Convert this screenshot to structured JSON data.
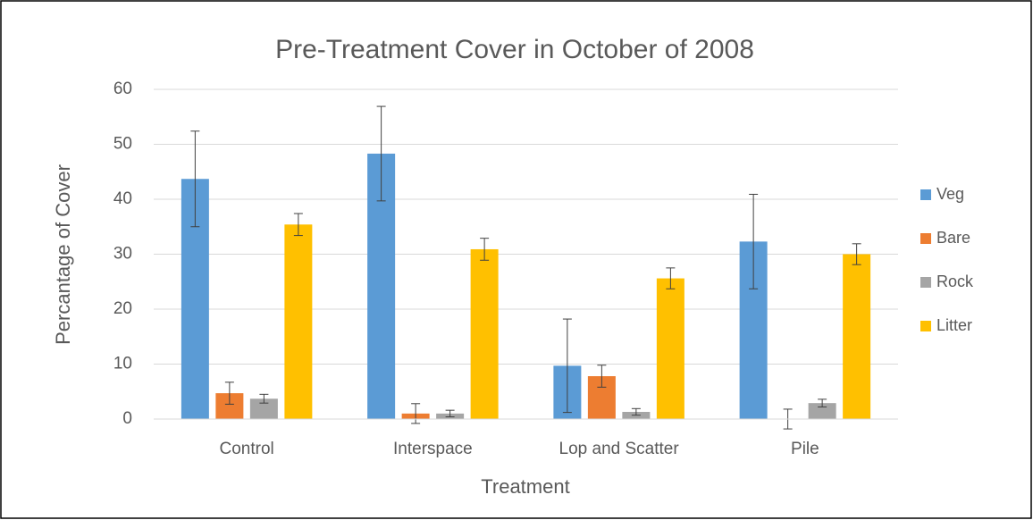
{
  "chart_data": {
    "type": "bar",
    "title": "Pre-Treatment Cover in October of 2008",
    "xlabel": "Treatment",
    "ylabel": "Percantage  of  Cover",
    "categories": [
      "Control",
      "Interspace",
      "Lop and Scatter",
      "Pile"
    ],
    "series": [
      {
        "name": "Veg",
        "color": "#5b9bd5",
        "values": [
          43.7,
          48.3,
          9.7,
          32.3
        ],
        "errors": [
          8.7,
          8.6,
          8.5,
          8.6
        ]
      },
      {
        "name": "Bare",
        "color": "#ed7d31",
        "values": [
          4.7,
          1.0,
          7.8,
          0
        ],
        "errors": [
          2.0,
          1.8,
          2.0,
          1.8
        ]
      },
      {
        "name": "Rock",
        "color": "#a5a5a5",
        "values": [
          3.7,
          1.0,
          1.3,
          2.9
        ],
        "errors": [
          0.8,
          0.6,
          0.6,
          0.7
        ]
      },
      {
        "name": "Litter",
        "color": "#ffc000",
        "values": [
          35.4,
          30.9,
          25.6,
          30.0
        ],
        "errors": [
          2.0,
          2.0,
          1.9,
          1.9
        ]
      }
    ],
    "ylim": [
      0,
      60
    ],
    "yticks": [
      0,
      10,
      20,
      30,
      40,
      50,
      60
    ],
    "grid": true,
    "legend": "right"
  }
}
